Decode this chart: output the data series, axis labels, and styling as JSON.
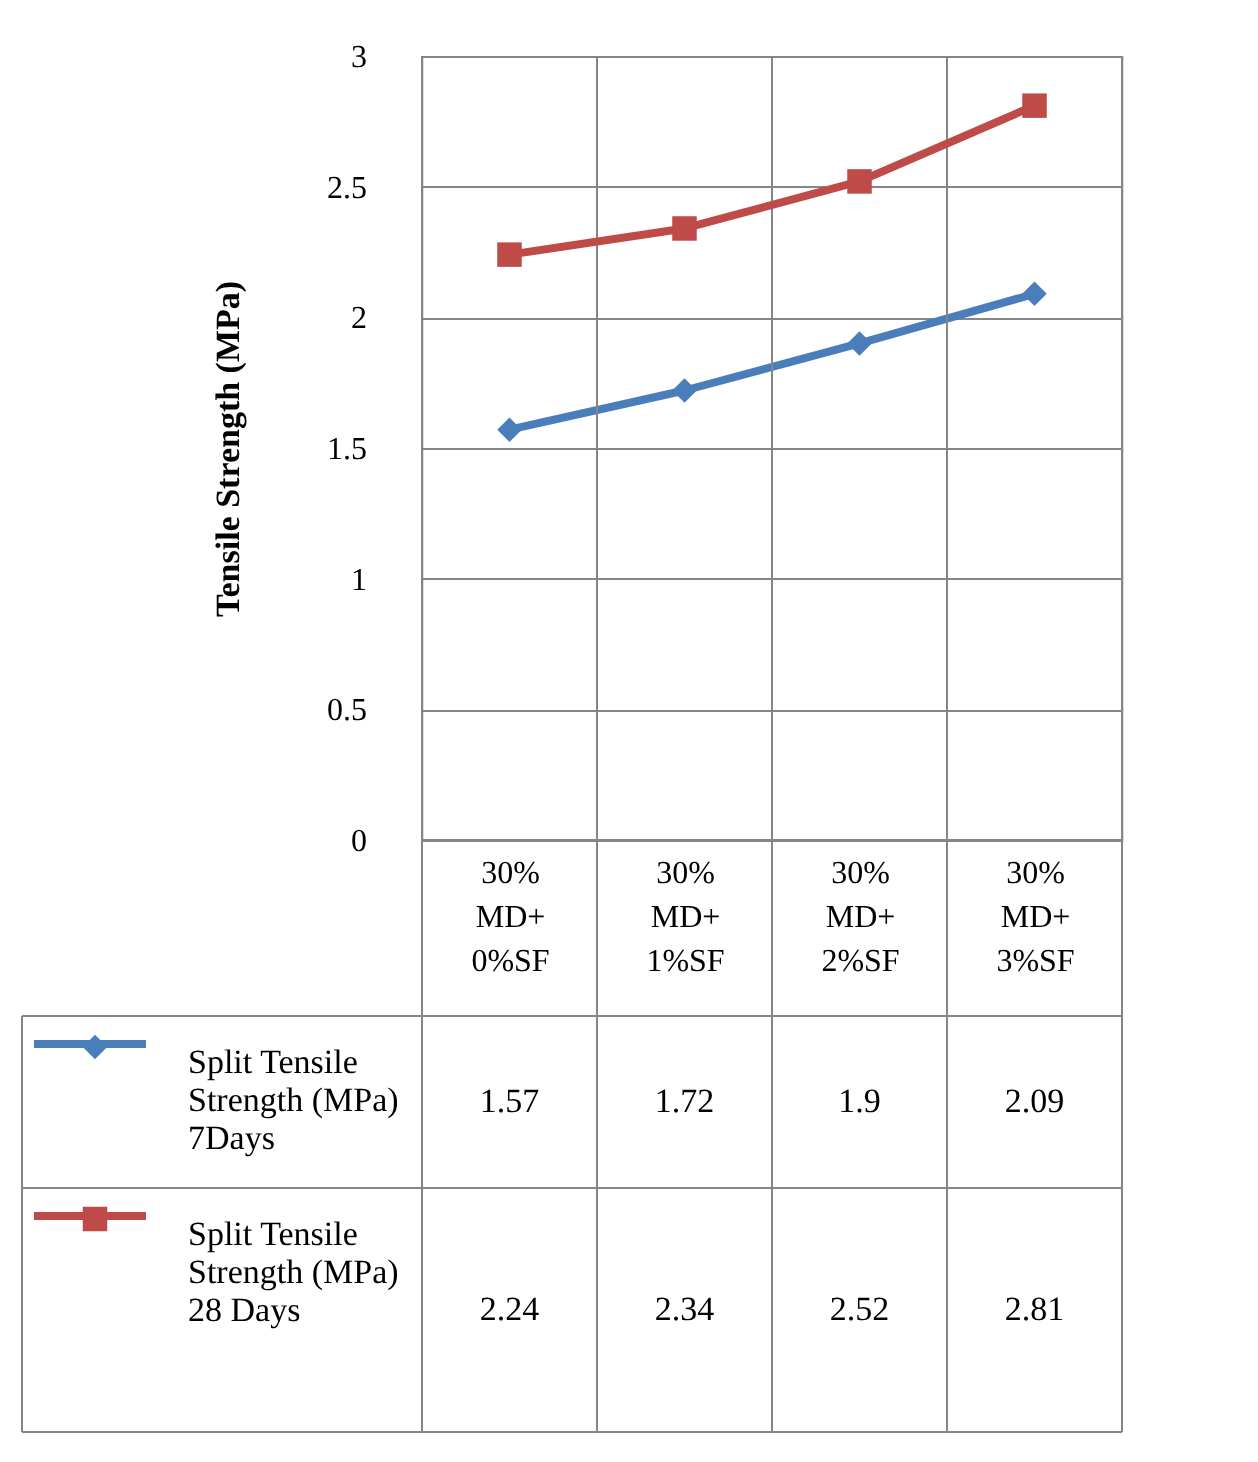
{
  "chart_data": {
    "type": "line",
    "ylabel": "Tensile Strength (MPa)",
    "categories": [
      "30% MD+ 0%SF",
      "30% MD+ 1%SF",
      "30% MD+ 2%SF",
      "30% MD+ 3%SF"
    ],
    "series": [
      {
        "name": "Split Tensile Strength (MPa) 7Days",
        "color": "#4a7ebb",
        "marker": "diamond",
        "values": [
          1.57,
          1.72,
          1.9,
          2.09
        ]
      },
      {
        "name": "Split Tensile Strength (MPa) 28 Days",
        "color": "#be4b48",
        "marker": "square",
        "values": [
          2.24,
          2.34,
          2.52,
          2.81
        ]
      }
    ],
    "ylim": [
      0,
      3
    ],
    "yticks": [
      0,
      0.5,
      1,
      1.5,
      2,
      2.5,
      3
    ],
    "grid": "y",
    "data_labels": true,
    "legend": "bottom",
    "line_style": "solid"
  }
}
